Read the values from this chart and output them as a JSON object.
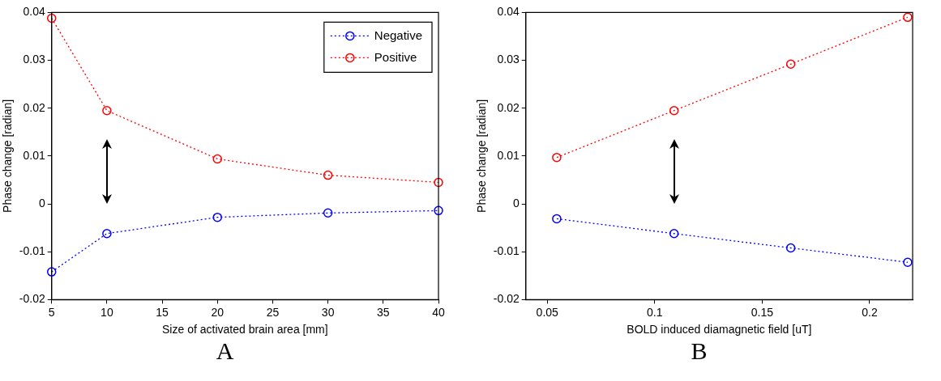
{
  "chart_data": [
    {
      "type": "line",
      "xlabel": "Size of activated brain area [mm]",
      "ylabel": "Phase change [radian]",
      "annotations": [
        "A"
      ],
      "x": [
        5,
        10,
        20,
        30,
        40
      ],
      "xlim": [
        5,
        40
      ],
      "xticks": [
        5,
        10,
        15,
        20,
        25,
        30,
        35,
        40
      ],
      "ylim": [
        -0.02,
        0.04
      ],
      "yticks": [
        -0.02,
        -0.01,
        0,
        0.01,
        0.02,
        0.03,
        0.04
      ],
      "grid": false,
      "legend": "top right",
      "marker": "circle",
      "line_style": "dotted",
      "series": [
        {
          "name": "Negative",
          "color": "#0000ff",
          "values": [
            -0.0142,
            -0.0062,
            -0.0028,
            -0.0019,
            -0.0014
          ]
        },
        {
          "name": "Positive",
          "color": "#ff0000",
          "values": [
            0.0388,
            0.0195,
            0.0094,
            0.006,
            0.0045
          ]
        }
      ]
    },
    {
      "type": "line",
      "xlabel": "BOLD induced diamagnetic field [uT]",
      "ylabel": "Phase change [radian]",
      "annotations": [
        "B"
      ],
      "x": [
        0.0544,
        0.109,
        0.1633,
        0.2177
      ],
      "xlim": [
        0.04,
        0.22
      ],
      "xticks": [
        0.05,
        0.1,
        0.15,
        0.2
      ],
      "ylim": [
        -0.02,
        0.04
      ],
      "yticks": [
        -0.02,
        -0.01,
        0,
        0.01,
        0.02,
        0.03,
        0.04
      ],
      "grid": false,
      "legend": false,
      "marker": "circle",
      "line_style": "dotted",
      "series": [
        {
          "color": "#0000ff",
          "values": [
            -0.0031,
            -0.0062,
            -0.0092,
            -0.0122
          ]
        },
        {
          "color": "#ff0000",
          "values": [
            0.0097,
            0.0195,
            0.0292,
            0.039
          ]
        }
      ]
    }
  ]
}
